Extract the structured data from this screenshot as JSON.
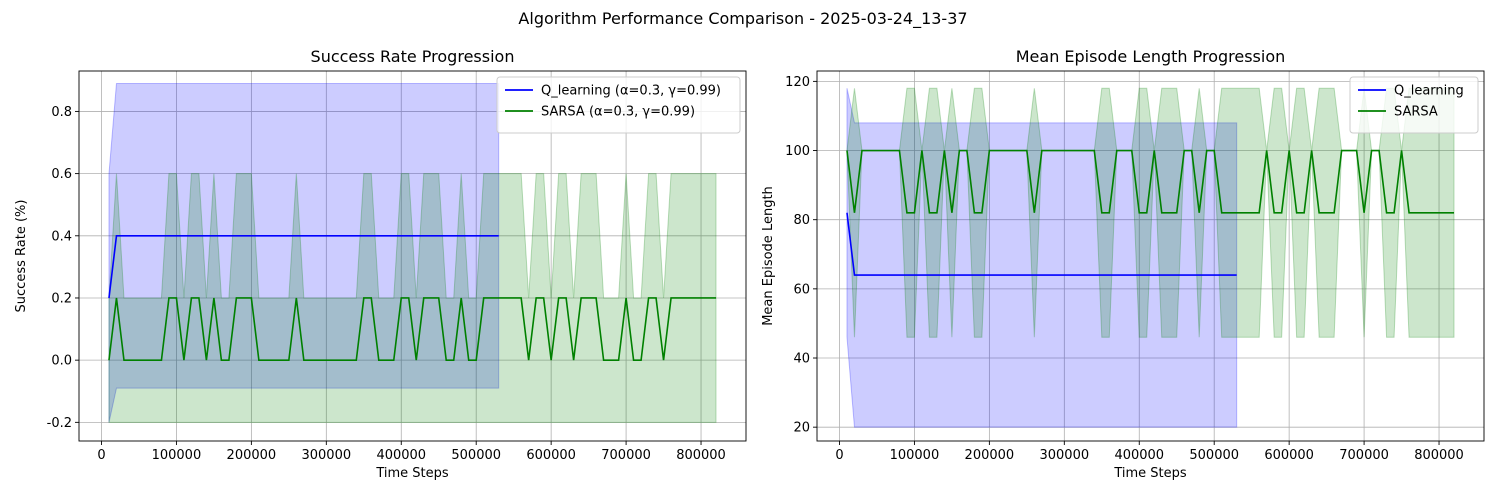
{
  "suptitle": "Algorithm Performance Comparison - 2025-03-24_13-37",
  "colors": {
    "q": "#0000ff",
    "sarsa": "#008000",
    "grid": "#b0b0b0"
  },
  "chart_data": [
    {
      "type": "line",
      "title": "Success Rate Progression",
      "xlabel": "Time Steps",
      "ylabel": "Success Rate (%)",
      "xlim": [
        -30000,
        860000
      ],
      "ylim": [
        -0.26,
        0.93
      ],
      "xticks": [
        0,
        100000,
        200000,
        300000,
        400000,
        500000,
        600000,
        700000,
        800000
      ],
      "yticks": [
        -0.2,
        0.0,
        0.2,
        0.4,
        0.6,
        0.8
      ],
      "ytick_decimals": 1,
      "grid": true,
      "legend": "upper right",
      "series": [
        {
          "name": "Q_learning (α=0.3, γ=0.99)",
          "color": "#0000ff",
          "x": [
            10000,
            20000,
            530000
          ],
          "y": [
            0.2,
            0.4,
            0.4
          ],
          "band_lower": [
            -0.2,
            -0.09,
            -0.09
          ],
          "band_upper": [
            0.6,
            0.89,
            0.89
          ]
        },
        {
          "name": "SARSA (α=0.3, γ=0.99)",
          "color": "#008000",
          "x": [
            10000,
            20000,
            30000,
            40000,
            50000,
            60000,
            70000,
            80000,
            90000,
            100000,
            110000,
            120000,
            130000,
            140000,
            150000,
            160000,
            170000,
            180000,
            190000,
            200000,
            210000,
            220000,
            230000,
            240000,
            250000,
            260000,
            270000,
            280000,
            290000,
            300000,
            310000,
            320000,
            330000,
            340000,
            350000,
            360000,
            370000,
            380000,
            390000,
            400000,
            410000,
            420000,
            430000,
            440000,
            450000,
            460000,
            470000,
            480000,
            490000,
            500000,
            510000,
            520000,
            530000,
            540000,
            550000,
            560000,
            570000,
            580000,
            590000,
            600000,
            610000,
            620000,
            630000,
            640000,
            650000,
            660000,
            670000,
            680000,
            690000,
            700000,
            710000,
            720000,
            730000,
            740000,
            750000,
            760000,
            770000,
            780000,
            790000,
            800000,
            810000,
            820000
          ],
          "y": [
            0.0,
            0.2,
            0.0,
            0.0,
            0.0,
            0.0,
            0.0,
            0.0,
            0.2,
            0.2,
            0.0,
            0.2,
            0.2,
            0.0,
            0.2,
            0.0,
            0.0,
            0.2,
            0.2,
            0.2,
            0.0,
            0.0,
            0.0,
            0.0,
            0.0,
            0.2,
            0.0,
            0.0,
            0.0,
            0.0,
            0.0,
            0.0,
            0.0,
            0.0,
            0.2,
            0.2,
            0.0,
            0.0,
            0.0,
            0.2,
            0.2,
            0.0,
            0.2,
            0.2,
            0.2,
            0.0,
            0.0,
            0.2,
            0.0,
            0.0,
            0.2,
            0.2,
            0.2,
            0.2,
            0.2,
            0.2,
            0.0,
            0.2,
            0.2,
            0.0,
            0.2,
            0.2,
            0.0,
            0.2,
            0.2,
            0.2,
            0.0,
            0.0,
            0.0,
            0.2,
            0.0,
            0.0,
            0.2,
            0.2,
            0.0,
            0.2,
            0.2,
            0.2,
            0.2,
            0.2,
            0.2,
            0.2
          ],
          "band": "zero_or_twenty",
          "band_for_0": [
            -0.2,
            0.2
          ],
          "band_for_02": [
            -0.2,
            0.6
          ]
        }
      ]
    },
    {
      "type": "line",
      "title": "Mean Episode Length Progression",
      "xlabel": "Time Steps",
      "ylabel": "Mean Episode Length",
      "xlim": [
        -30000,
        860000
      ],
      "ylim": [
        16,
        123
      ],
      "xticks": [
        0,
        100000,
        200000,
        300000,
        400000,
        500000,
        600000,
        700000,
        800000
      ],
      "yticks": [
        20,
        40,
        60,
        80,
        100,
        120
      ],
      "ytick_decimals": 0,
      "grid": true,
      "legend": "upper right",
      "series": [
        {
          "name": "Q_learning",
          "color": "#0000ff",
          "x": [
            10000,
            20000,
            530000
          ],
          "y": [
            82,
            64,
            64
          ],
          "band_lower": [
            46,
            20,
            20
          ],
          "band_upper": [
            118,
            108,
            108
          ]
        },
        {
          "name": "SARSA",
          "color": "#008000",
          "x": [
            10000,
            20000,
            30000,
            40000,
            50000,
            60000,
            70000,
            80000,
            90000,
            100000,
            110000,
            120000,
            130000,
            140000,
            150000,
            160000,
            170000,
            180000,
            190000,
            200000,
            210000,
            220000,
            230000,
            240000,
            250000,
            260000,
            270000,
            280000,
            290000,
            300000,
            310000,
            320000,
            330000,
            340000,
            350000,
            360000,
            370000,
            380000,
            390000,
            400000,
            410000,
            420000,
            430000,
            440000,
            450000,
            460000,
            470000,
            480000,
            490000,
            500000,
            510000,
            520000,
            530000,
            540000,
            550000,
            560000,
            570000,
            580000,
            590000,
            600000,
            610000,
            620000,
            630000,
            640000,
            650000,
            660000,
            670000,
            680000,
            690000,
            700000,
            710000,
            720000,
            730000,
            740000,
            750000,
            760000,
            770000,
            780000,
            790000,
            800000,
            810000,
            820000
          ],
          "y": [
            100,
            82,
            100,
            100,
            100,
            100,
            100,
            100,
            82,
            82,
            100,
            82,
            82,
            100,
            82,
            100,
            100,
            82,
            82,
            100,
            100,
            100,
            100,
            100,
            100,
            82,
            100,
            100,
            100,
            100,
            100,
            100,
            100,
            100,
            82,
            82,
            100,
            100,
            100,
            82,
            82,
            100,
            82,
            82,
            82,
            100,
            100,
            82,
            100,
            100,
            82,
            82,
            82,
            82,
            82,
            82,
            100,
            82,
            82,
            100,
            82,
            82,
            100,
            82,
            82,
            82,
            100,
            100,
            100,
            82,
            100,
            100,
            82,
            82,
            100,
            82,
            82,
            82,
            82,
            82,
            82,
            82
          ],
          "band": "hundred_or_82",
          "band_for_100": [
            100,
            100
          ],
          "band_for_82": [
            46,
            118
          ]
        }
      ]
    }
  ]
}
